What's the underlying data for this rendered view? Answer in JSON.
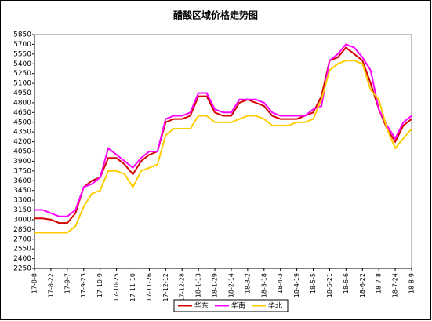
{
  "chart_data": {
    "type": "line",
    "title": "醋酸区域价格走势图",
    "categories": [
      "17-8-8",
      null,
      "17-8-22",
      null,
      "17-9-7",
      null,
      "17-9-23",
      null,
      "17-10-9",
      null,
      "17-10-25",
      null,
      "17-11-10",
      null,
      "17-11-26",
      null,
      "17-12-12",
      null,
      "17-12-28",
      null,
      "18-1-13",
      null,
      "18-1-29",
      null,
      "18-2-14",
      null,
      "18-3-2",
      null,
      "18-3-18",
      null,
      "18-4-3",
      null,
      "18-4-19",
      null,
      "18-5-5",
      null,
      "18-5-21",
      null,
      "18-6-6",
      null,
      "18-6-22",
      null,
      "18-7-8",
      null,
      "18-7-24",
      null,
      "18-8-9"
    ],
    "series": [
      {
        "name": "华东",
        "color": "#d40000",
        "values": [
          3020,
          3020,
          3000,
          2950,
          2950,
          3100,
          3500,
          3600,
          3650,
          3950,
          3950,
          3850,
          3700,
          3900,
          4000,
          4050,
          4500,
          4550,
          4550,
          4600,
          4900,
          4900,
          4650,
          4600,
          4600,
          4800,
          4850,
          4800,
          4750,
          4600,
          4550,
          4550,
          4550,
          4600,
          4650,
          4900,
          5450,
          5500,
          5650,
          5550,
          5450,
          5100,
          4700,
          4400,
          4200,
          4450,
          4550
        ]
      },
      {
        "name": "华南",
        "color": "#ff00ff",
        "values": [
          3150,
          3150,
          3100,
          3050,
          3050,
          3150,
          3500,
          3550,
          3650,
          4100,
          4000,
          3900,
          3800,
          3950,
          4050,
          4050,
          4550,
          4600,
          4600,
          4650,
          4950,
          4950,
          4700,
          4650,
          4650,
          4850,
          4850,
          4850,
          4800,
          4650,
          4600,
          4600,
          4600,
          4600,
          4700,
          4750,
          5450,
          5550,
          5700,
          5650,
          5500,
          5300,
          4700,
          4450,
          4250,
          4500,
          4600
        ]
      },
      {
        "name": "华北",
        "color": "#ffcc00",
        "values": [
          2800,
          2800,
          2800,
          2800,
          2800,
          2900,
          3200,
          3400,
          3450,
          3750,
          3750,
          3700,
          3500,
          3750,
          3800,
          3850,
          4300,
          4400,
          4400,
          4400,
          4600,
          4600,
          4500,
          4500,
          4500,
          4550,
          4600,
          4600,
          4550,
          4450,
          4450,
          4450,
          4500,
          4500,
          4550,
          4850,
          5300,
          5400,
          5450,
          5450,
          5400,
          5000,
          4850,
          4400,
          4100,
          4250,
          4400
        ]
      }
    ],
    "ylim": [
      2250,
      5850
    ],
    "yticks": [
      2250,
      2400,
      2550,
      2700,
      2850,
      3000,
      3150,
      3300,
      3450,
      3600,
      3750,
      3900,
      4050,
      4200,
      4350,
      4500,
      4650,
      4800,
      4950,
      5100,
      5250,
      5400,
      5550,
      5700,
      5850
    ],
    "grid": false,
    "legend": "bottom"
  }
}
